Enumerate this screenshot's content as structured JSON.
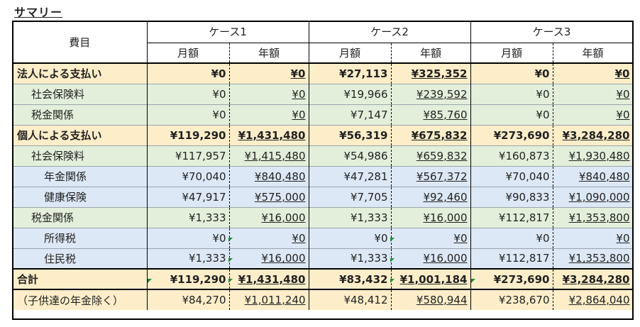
{
  "title": "サマリー",
  "header": {
    "item": "費目",
    "cases": [
      "ケース1",
      "ケース2",
      "ケース3"
    ],
    "monthly": "月額",
    "yearly": "年額"
  },
  "rows": [
    {
      "label": "法人による支払い",
      "level": 0,
      "style": "yellow-bold",
      "values": [
        "¥0",
        "¥0",
        "¥27,113",
        "¥325,352",
        "¥0",
        "¥0"
      ]
    },
    {
      "label": "社会保険料",
      "level": 1,
      "style": "green",
      "values": [
        "¥0",
        "¥0",
        "¥19,966",
        "¥239,592",
        "¥0",
        "¥0"
      ]
    },
    {
      "label": "税金関係",
      "level": 1,
      "style": "green",
      "values": [
        "¥0",
        "¥0",
        "¥7,147",
        "¥85,760",
        "¥0",
        "¥0"
      ]
    },
    {
      "label": "個人による支払い",
      "level": 0,
      "style": "yellow-bold",
      "values": [
        "¥119,290",
        "¥1,431,480",
        "¥56,319",
        "¥675,832",
        "¥273,690",
        "¥3,284,280"
      ]
    },
    {
      "label": "社会保険料",
      "level": 1,
      "style": "green",
      "values": [
        "¥117,957",
        "¥1,415,480",
        "¥54,986",
        "¥659,832",
        "¥160,873",
        "¥1,930,480"
      ]
    },
    {
      "label": "年金関係",
      "level": 2,
      "style": "blue",
      "values": [
        "¥70,040",
        "¥840,480",
        "¥47,281",
        "¥567,372",
        "¥70,040",
        "¥840,480"
      ]
    },
    {
      "label": "健康保険",
      "level": 2,
      "style": "blue",
      "values": [
        "¥47,917",
        "¥575,000",
        "¥7,705",
        "¥92,460",
        "¥90,833",
        "¥1,090,000"
      ]
    },
    {
      "label": "税金関係",
      "level": 1,
      "style": "green",
      "values": [
        "¥1,333",
        "¥16,000",
        "¥1,333",
        "¥16,000",
        "¥112,817",
        "¥1,353,800"
      ]
    },
    {
      "label": "所得税",
      "level": 2,
      "style": "blue",
      "values": [
        "¥0",
        "¥0",
        "¥0",
        "¥0",
        "¥0",
        "¥0"
      ]
    },
    {
      "label": "住民税",
      "level": 2,
      "style": "blue",
      "values": [
        "¥1,333",
        "¥16,000",
        "¥1,333",
        "¥16,000",
        "¥112,817",
        "¥1,353,800"
      ]
    },
    {
      "label": "合計",
      "level": 0,
      "style": "yellow-bold",
      "values": [
        "¥119,290",
        "¥1,431,480",
        "¥83,432",
        "¥1,001,184",
        "¥273,690",
        "¥3,284,280"
      ]
    },
    {
      "label": "（子供達の年金除く）",
      "level": 0,
      "style": "yellow",
      "values": [
        "¥84,270",
        "¥1,011,240",
        "¥48,412",
        "¥580,944",
        "¥238,670",
        "¥2,864,040"
      ]
    }
  ]
}
